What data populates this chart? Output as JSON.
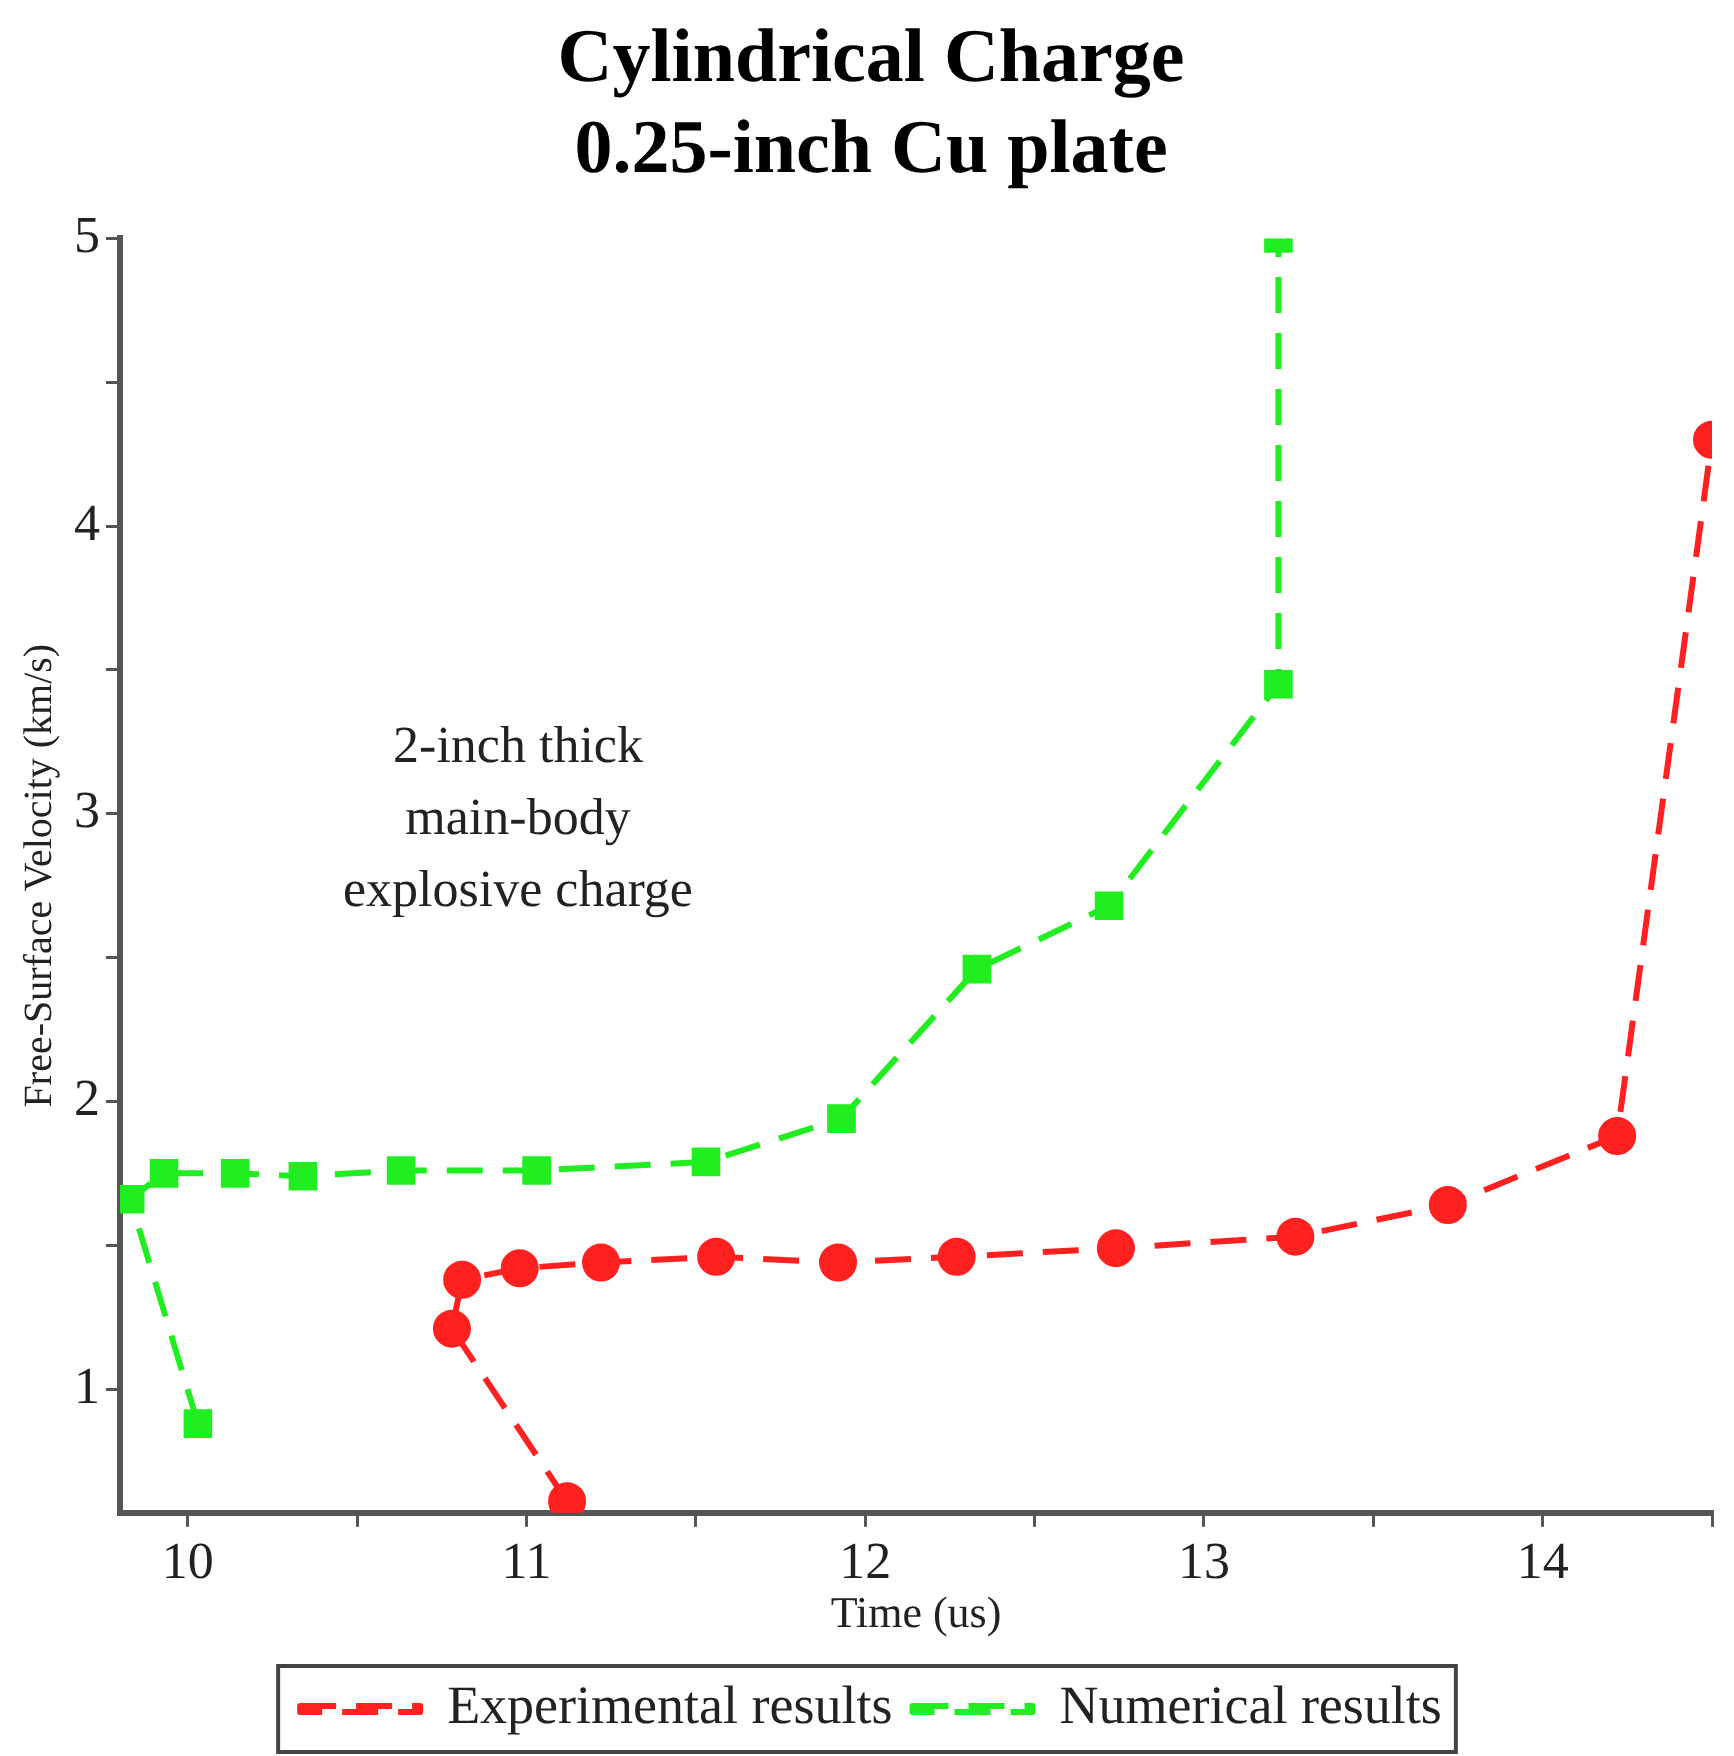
{
  "chart_data": {
    "type": "line",
    "title": "Cylindrical Charge\n0.25-inch Cu plate",
    "xlabel": "Time (us)",
    "ylabel": "Free-Surface Velocity (km/s)",
    "xlim": [
      9.8,
      14.5
    ],
    "ylim": [
      0.57,
      5
    ],
    "xticks": [
      10,
      {
        "value": 10.5,
        "label": null
      },
      11,
      {
        "value": 11.5,
        "label": null
      },
      12,
      {
        "value": 12.5,
        "label": null
      },
      13,
      {
        "value": 13.5,
        "label": null
      },
      14,
      {
        "value": 14.5,
        "label": null
      }
    ],
    "yticks": [
      {
        "value": 1,
        "label": "1"
      },
      {
        "value": 1.5,
        "label": null
      },
      2,
      {
        "value": 2.5,
        "label": null
      },
      3,
      {
        "value": 3.5,
        "label": null
      },
      4,
      {
        "value": 4.5,
        "label": null
      },
      5
    ],
    "grid": false,
    "legend": "bottom",
    "line_style": "dashed",
    "annotations": [
      "2-inch thick\nmain-body\nexplosive charge"
    ],
    "series": [
      {
        "name": "Experimental results",
        "color": "#ff2020",
        "marker": "circle",
        "x": [
          11.12,
          10.78,
          10.81,
          10.98,
          11.22,
          11.56,
          11.92,
          12.27,
          12.74,
          13.27,
          13.72,
          14.22,
          14.5
        ],
        "values": [
          0.61,
          1.21,
          1.38,
          1.42,
          1.44,
          1.46,
          1.44,
          1.46,
          1.49,
          1.53,
          1.64,
          1.88,
          4.3
        ]
      },
      {
        "name": "Numerical results",
        "color": "#20ee20",
        "marker": "square",
        "x": [
          10.03,
          9.83,
          9.93,
          10.14,
          10.34,
          10.63,
          11.03,
          11.53,
          11.93,
          12.33,
          12.72,
          13.22,
          13.22
        ],
        "values": [
          0.88,
          1.66,
          1.75,
          1.75,
          1.74,
          1.76,
          1.76,
          1.79,
          1.94,
          2.46,
          2.68,
          3.45,
          5.0
        ]
      }
    ]
  }
}
